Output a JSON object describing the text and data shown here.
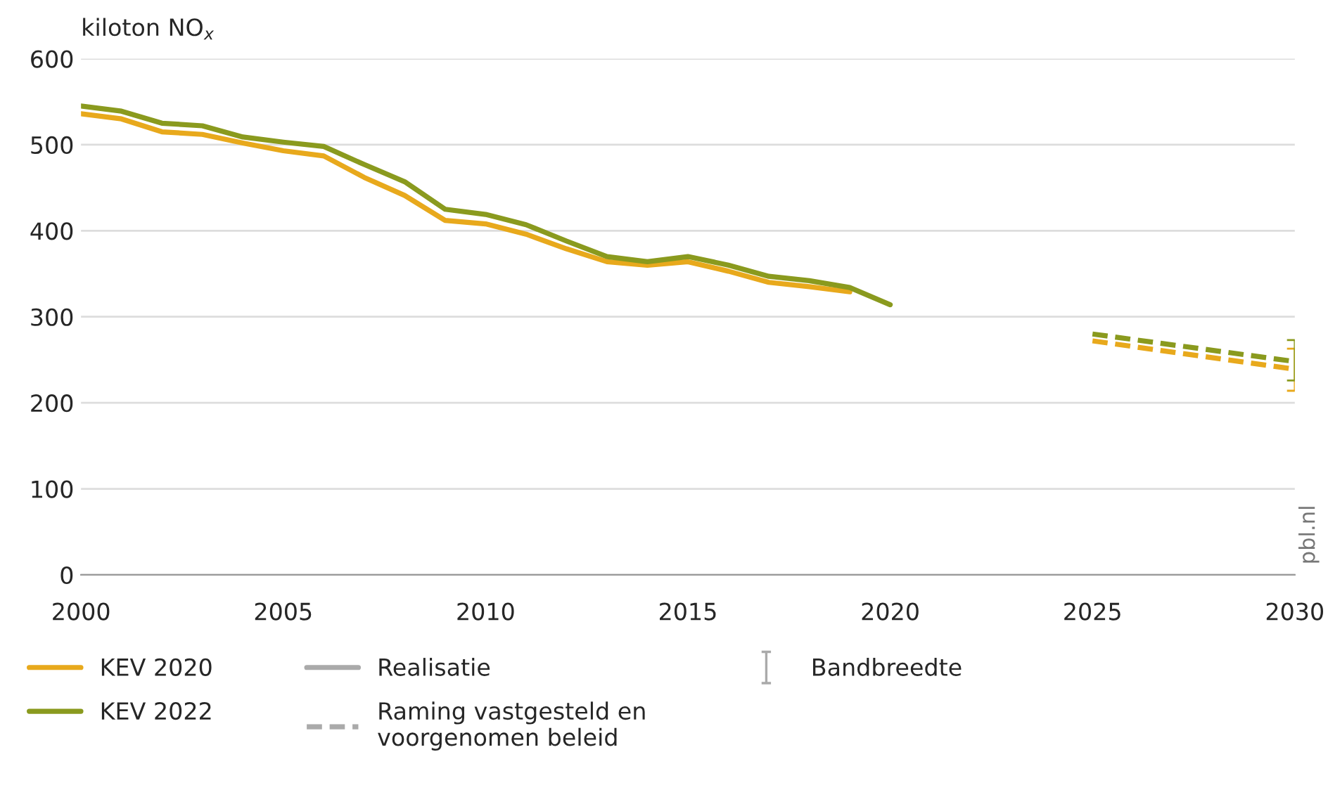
{
  "chart_data": {
    "type": "line",
    "ylabel": "kiloton NO$_{x}$",
    "xlim": [
      2000,
      2030
    ],
    "xticks": [
      2000,
      2005,
      2010,
      2015,
      2020,
      2025,
      2030
    ],
    "ylim": [
      0,
      600
    ],
    "yticks": [
      0,
      100,
      200,
      300,
      400,
      500,
      600
    ],
    "grid": "y",
    "legend": "bottom",
    "line_style": "solid",
    "marker": "none",
    "series": [
      {
        "name": "KEV 2020",
        "color": "#e8a91c",
        "x": [
          2000,
          2001,
          2002,
          2003,
          2004,
          2005,
          2006,
          2007,
          2008,
          2009,
          2010,
          2011,
          2012,
          2013,
          2014,
          2015,
          2016,
          2017,
          2018,
          2019
        ],
        "values": [
          536,
          530,
          515,
          512,
          502,
          493,
          487,
          462,
          441,
          412,
          408,
          396,
          379,
          364,
          360,
          364,
          353,
          340,
          335,
          329
        ]
      },
      {
        "name": "KEV 2022",
        "color": "#8a9a1e",
        "x": [
          2000,
          2001,
          2002,
          2003,
          2004,
          2005,
          2006,
          2007,
          2008,
          2009,
          2010,
          2011,
          2012,
          2013,
          2014,
          2015,
          2016,
          2017,
          2018,
          2019,
          2020
        ],
        "values": [
          545,
          539,
          525,
          522,
          509,
          503,
          498,
          477,
          457,
          425,
          419,
          407,
          388,
          370,
          364,
          370,
          360,
          347,
          342,
          334,
          314
        ]
      },
      {
        "color": "#e8a91c",
        "line_style": "dashed",
        "x": [
          2025,
          2030
        ],
        "values": [
          272,
          239
        ],
        "errors": [
          null,
          [
            214,
            263
          ]
        ]
      },
      {
        "color": "#8a9a1e",
        "line_style": "dashed",
        "x": [
          2025,
          2030
        ],
        "values": [
          280,
          248
        ],
        "errors": [
          null,
          [
            226,
            273
          ]
        ]
      }
    ],
    "annotations": [
      "Realisatie",
      "Raming vastgesteld en\nvoorgenomen beleid",
      "Bandbreedte",
      "pbl.nl"
    ]
  }
}
